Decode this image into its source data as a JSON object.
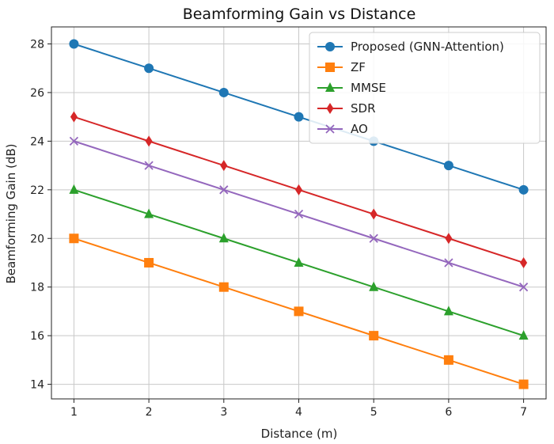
{
  "chart_data": {
    "type": "line",
    "title": "Beamforming Gain vs Distance",
    "xlabel": "Distance (m)",
    "ylabel": "Beamforming Gain (dB)",
    "x": [
      1,
      2,
      3,
      4,
      5,
      6,
      7
    ],
    "xlim": [
      0.7,
      7.3
    ],
    "ylim": [
      13.4,
      28.7
    ],
    "xticks": [
      1,
      2,
      3,
      4,
      5,
      6,
      7
    ],
    "yticks": [
      14,
      16,
      18,
      20,
      22,
      24,
      26,
      28
    ],
    "grid": true,
    "legend_position": "top-right",
    "series": [
      {
        "name": "Proposed (GNN-Attention)",
        "color": "#1f77b4",
        "marker": "circle",
        "values": [
          28,
          27,
          26,
          25,
          24,
          23,
          22
        ]
      },
      {
        "name": "ZF",
        "color": "#ff7f0e",
        "marker": "square",
        "values": [
          20,
          19,
          18,
          17,
          16,
          15,
          14
        ]
      },
      {
        "name": "MMSE",
        "color": "#2ca02c",
        "marker": "triangle",
        "values": [
          22,
          21,
          20,
          19,
          18,
          17,
          16
        ]
      },
      {
        "name": "SDR",
        "color": "#d62728",
        "marker": "diamond",
        "values": [
          25,
          24,
          23,
          22,
          21,
          20,
          19
        ]
      },
      {
        "name": "AO",
        "color": "#9467bd",
        "marker": "x",
        "values": [
          24,
          23,
          22,
          21,
          20,
          19,
          18
        ]
      }
    ]
  }
}
